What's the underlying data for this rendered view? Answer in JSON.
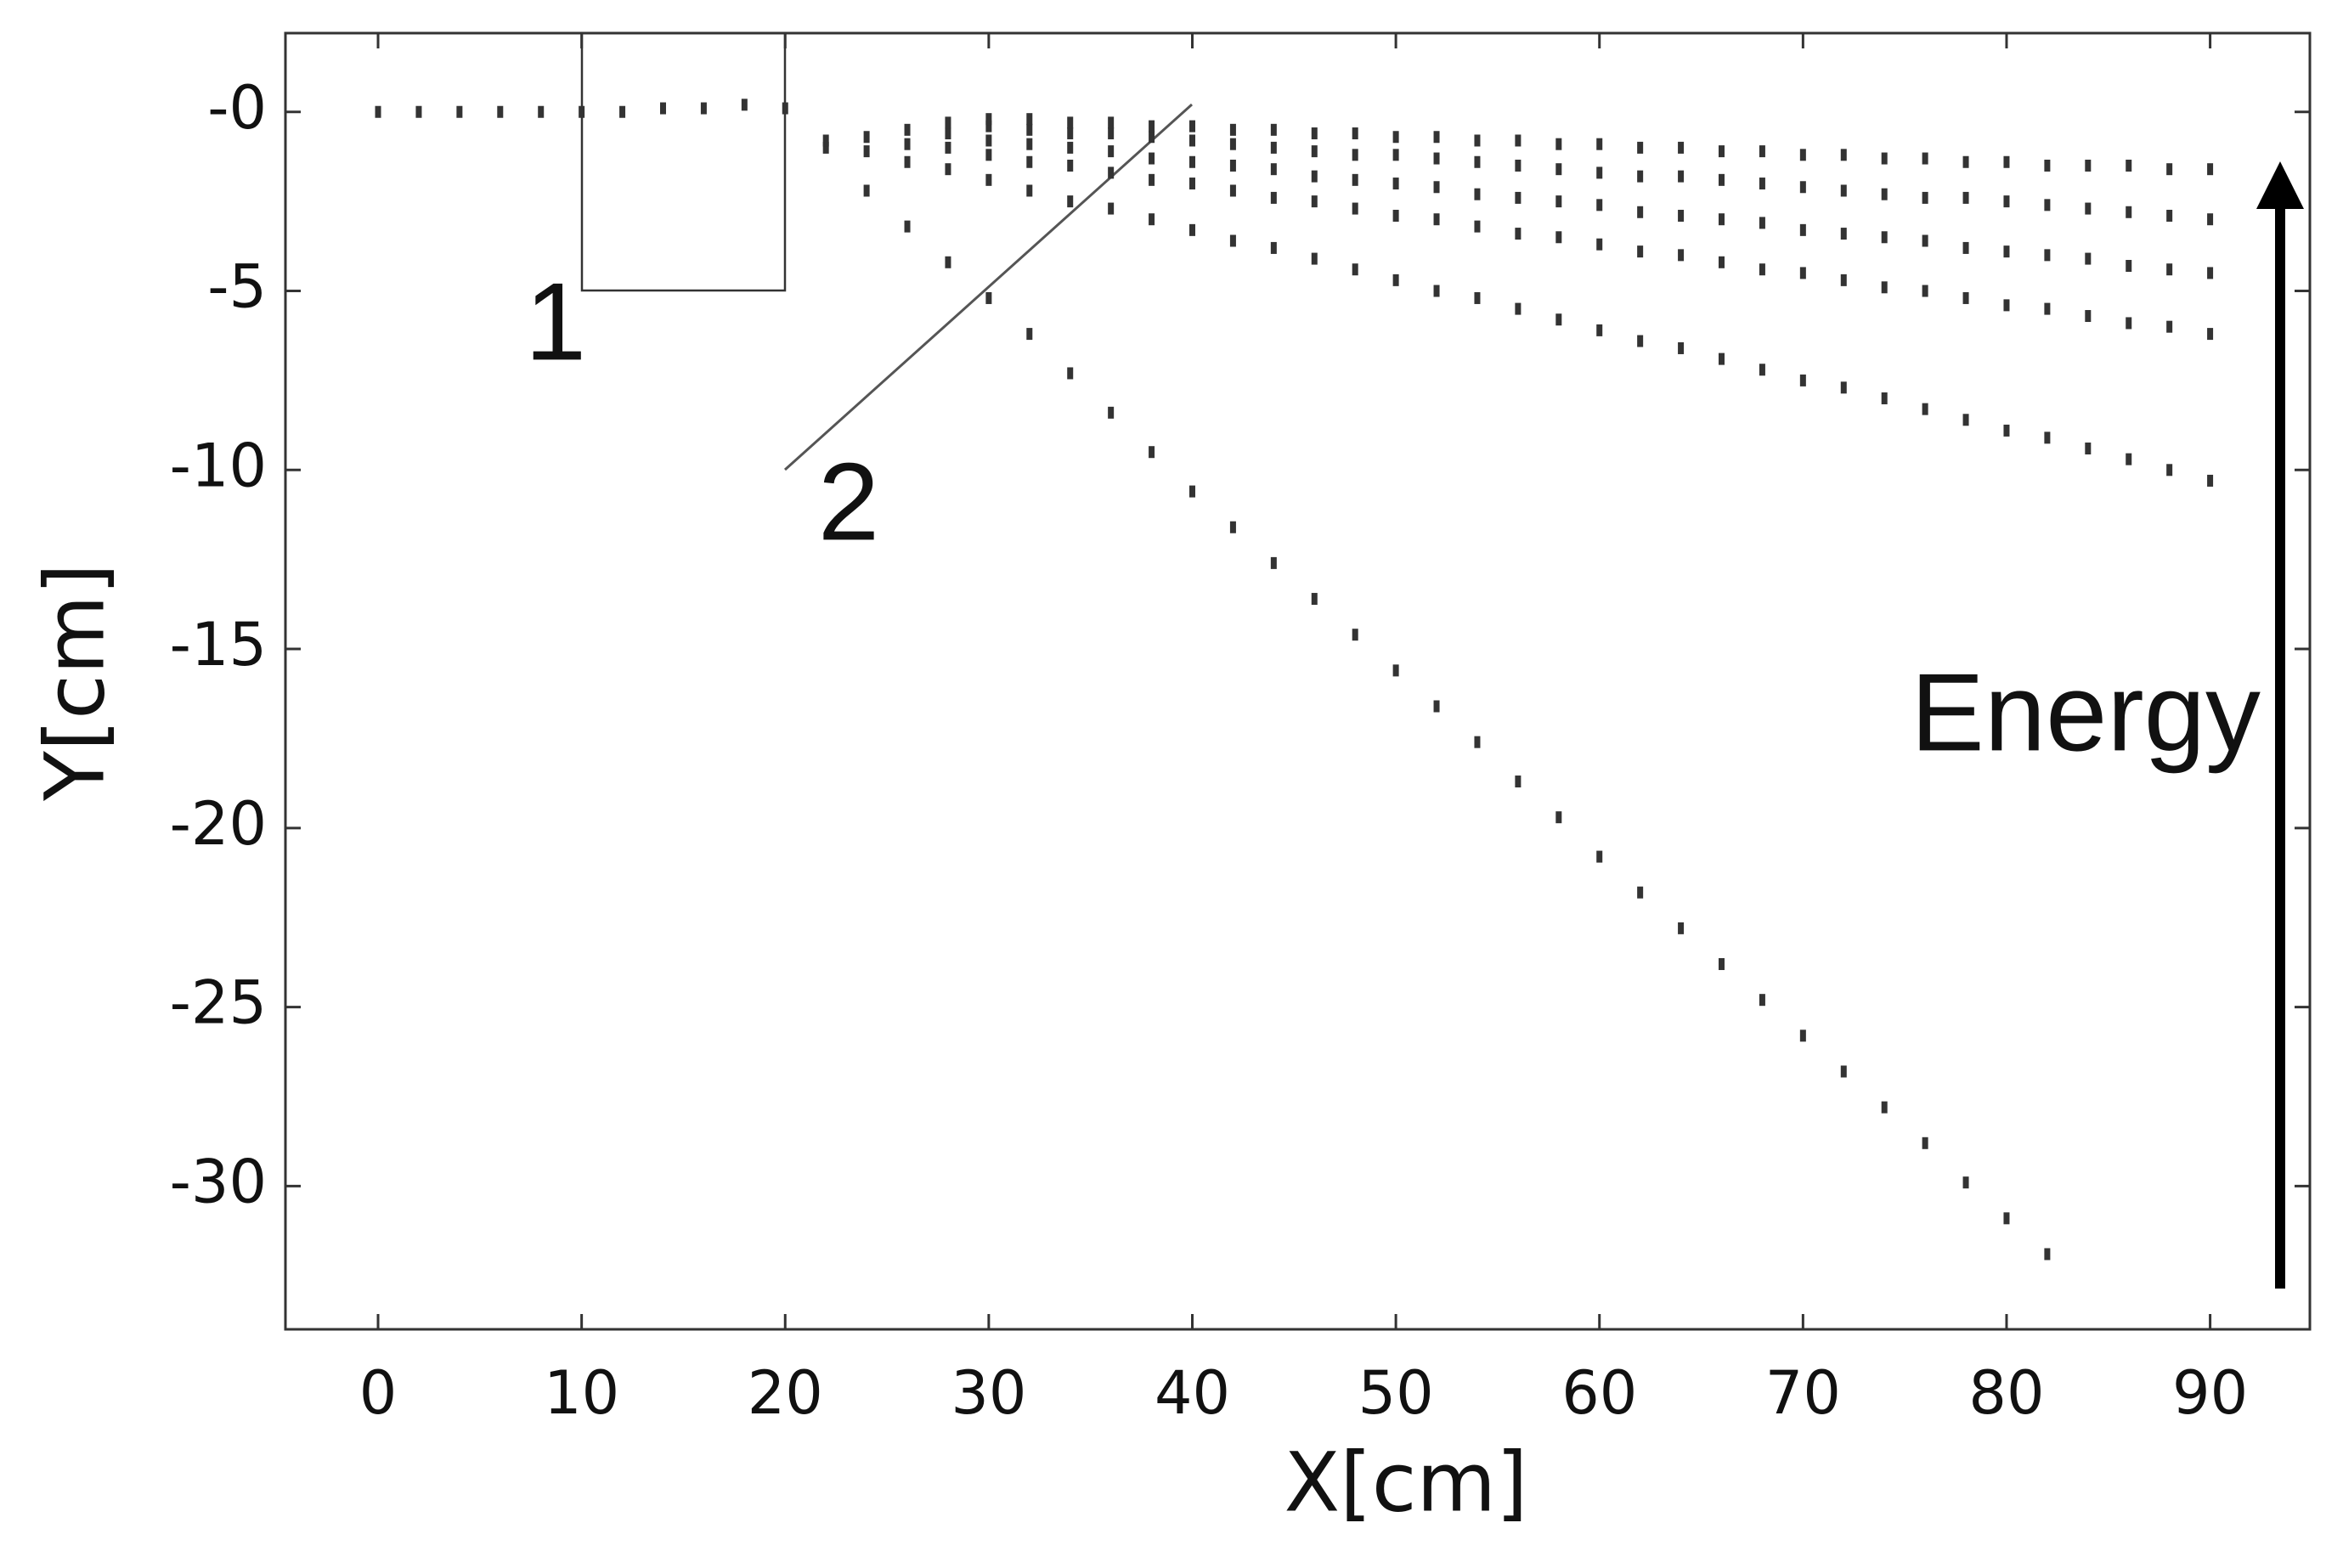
{
  "chart_data": {
    "type": "scatter",
    "x_label": "X[cm]",
    "y_label": "Y[cm]",
    "annotations": [
      "1",
      "2",
      "Energy"
    ],
    "xlim": [
      -4.55,
      94.9
    ],
    "ylim": [
      -34,
      2.2
    ],
    "xticks": [
      0,
      10,
      20,
      30,
      40,
      50,
      60,
      70,
      80,
      90
    ],
    "yticks": [
      {
        "value": 0,
        "label": "-0"
      },
      -5,
      -10,
      -15,
      -20,
      -25,
      -30
    ],
    "series": [
      {
        "color": "#333333",
        "x": [
          0,
          2,
          4,
          6,
          8,
          10,
          12,
          14,
          16,
          18,
          20
        ],
        "values": [
          0,
          0,
          0,
          0,
          0,
          0,
          0,
          0.1,
          0.1,
          0.2,
          0.1
        ]
      },
      {
        "color": "#333333",
        "x": [
          22,
          24,
          26,
          28,
          30,
          32,
          34,
          36,
          38,
          40,
          42,
          44,
          46,
          48,
          50,
          52,
          54,
          56,
          58,
          60,
          62,
          64,
          66,
          68,
          70,
          72,
          74,
          76,
          78,
          80,
          82
        ],
        "values": [
          -1.0,
          -2.2,
          -3.2,
          -4.2,
          -5.2,
          -6.2,
          -7.3,
          -8.4,
          -9.5,
          -10.6,
          -11.6,
          -12.6,
          -13.6,
          -14.6,
          -15.6,
          -16.6,
          -17.6,
          -18.7,
          -19.7,
          -20.8,
          -21.8,
          -22.8,
          -23.8,
          -24.8,
          -25.8,
          -26.8,
          -27.8,
          -28.8,
          -29.9,
          -30.9,
          -31.9
        ]
      },
      {
        "color": "#333333",
        "x": [
          22,
          24,
          26,
          28,
          30,
          32,
          34,
          36,
          38,
          40,
          42,
          44,
          46,
          48,
          50,
          52,
          54,
          56,
          58,
          60,
          62,
          64,
          66,
          68,
          70,
          72,
          74,
          76,
          78,
          80,
          82,
          84,
          86,
          88,
          90
        ],
        "values": [
          -0.8,
          -1.1,
          -1.4,
          -1.6,
          -1.9,
          -2.2,
          -2.5,
          -2.7,
          -3.0,
          -3.3,
          -3.6,
          -3.8,
          -4.1,
          -4.4,
          -4.7,
          -5.0,
          -5.2,
          -5.5,
          -5.8,
          -6.1,
          -6.4,
          -6.6,
          -6.9,
          -7.2,
          -7.5,
          -7.7,
          -8.0,
          -8.3,
          -8.6,
          -8.9,
          -9.1,
          -9.4,
          -9.7,
          -10.0,
          -10.3
        ]
      },
      {
        "color": "#333333",
        "x": [
          24,
          26,
          28,
          30,
          32,
          34,
          36,
          38,
          40,
          42,
          44,
          46,
          48,
          50,
          52,
          54,
          56,
          58,
          60,
          62,
          64,
          66,
          68,
          70,
          72,
          74,
          76,
          78,
          80,
          82,
          84,
          86,
          88,
          90
        ],
        "values": [
          -0.7,
          -0.9,
          -1.0,
          -1.2,
          -1.4,
          -1.5,
          -1.7,
          -1.9,
          -2.0,
          -2.2,
          -2.4,
          -2.5,
          -2.7,
          -2.9,
          -3.0,
          -3.2,
          -3.4,
          -3.5,
          -3.7,
          -3.9,
          -4.0,
          -4.2,
          -4.4,
          -4.5,
          -4.7,
          -4.9,
          -5.0,
          -5.2,
          -5.4,
          -5.5,
          -5.7,
          -5.9,
          -6.0,
          -6.2
        ]
      },
      {
        "color": "#333333",
        "x": [
          26,
          28,
          30,
          32,
          34,
          36,
          38,
          40,
          42,
          44,
          46,
          48,
          50,
          52,
          54,
          56,
          58,
          60,
          62,
          64,
          66,
          68,
          70,
          72,
          74,
          76,
          78,
          80,
          82,
          84,
          86,
          88,
          90
        ],
        "values": [
          -0.5,
          -0.6,
          -0.8,
          -0.9,
          -1.0,
          -1.1,
          -1.3,
          -1.4,
          -1.5,
          -1.6,
          -1.8,
          -1.9,
          -2.0,
          -2.1,
          -2.3,
          -2.4,
          -2.5,
          -2.6,
          -2.8,
          -2.9,
          -3.0,
          -3.1,
          -3.3,
          -3.4,
          -3.5,
          -3.6,
          -3.8,
          -3.9,
          -4.0,
          -4.1,
          -4.3,
          -4.4,
          -4.5
        ]
      },
      {
        "color": "#333333",
        "x": [
          28,
          30,
          32,
          34,
          36,
          38,
          40,
          42,
          44,
          46,
          48,
          50,
          52,
          54,
          56,
          58,
          60,
          62,
          64,
          66,
          68,
          70,
          72,
          74,
          76,
          78,
          80,
          82,
          84,
          86,
          88,
          90
        ],
        "values": [
          -0.3,
          -0.4,
          -0.5,
          -0.6,
          -0.6,
          -0.7,
          -0.8,
          -0.9,
          -1.0,
          -1.1,
          -1.2,
          -1.2,
          -1.3,
          -1.4,
          -1.5,
          -1.6,
          -1.7,
          -1.8,
          -1.8,
          -1.9,
          -2.0,
          -2.1,
          -2.2,
          -2.3,
          -2.4,
          -2.4,
          -2.5,
          -2.6,
          -2.7,
          -2.8,
          -2.9,
          -3.0
        ]
      },
      {
        "color": "#333333",
        "x": [
          30,
          32,
          34,
          36,
          38,
          40,
          42,
          44,
          46,
          48,
          50,
          52,
          54,
          56,
          58,
          60,
          62,
          64,
          66,
          68,
          70,
          72,
          74,
          76,
          78,
          80,
          82,
          84,
          86,
          88,
          90
        ],
        "values": [
          -0.2,
          -0.2,
          -0.3,
          -0.3,
          -0.4,
          -0.4,
          -0.5,
          -0.5,
          -0.6,
          -0.6,
          -0.7,
          -0.7,
          -0.8,
          -0.8,
          -0.9,
          -0.9,
          -1.0,
          -1.0,
          -1.1,
          -1.1,
          -1.2,
          -1.2,
          -1.3,
          -1.3,
          -1.4,
          -1.4,
          -1.5,
          -1.5,
          -1.5,
          -1.6,
          -1.6
        ]
      }
    ]
  }
}
